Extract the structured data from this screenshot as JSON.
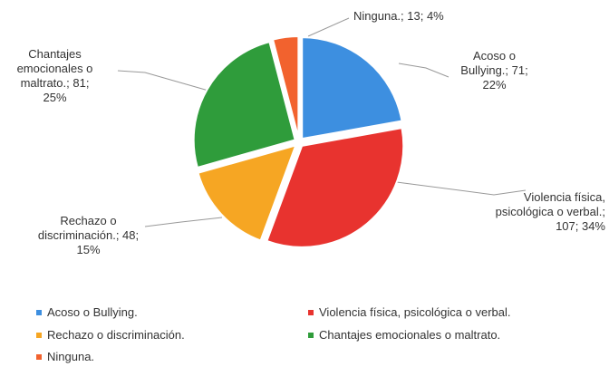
{
  "chart_data": {
    "type": "pie",
    "categories": [
      "Acoso o Bullying.",
      "Violencia física, psicológica o verbal.",
      "Rechazo o discriminación.",
      "Chantajes emocionales o maltrato.",
      "Ninguna."
    ],
    "values": [
      71,
      107,
      48,
      81,
      13
    ],
    "value_labels": [
      "Acoso o Bullying.; 71; 22%",
      "Violencia física, psicológica o verbal.; 107; 34%",
      "Rechazo o discriminación.; 48; 15%",
      "Chantajes emocionales o maltrato.; 81; 25%",
      "Ninguna.; 13; 4%"
    ],
    "colors": [
      "#3d8fe0",
      "#e8332f",
      "#f6a623",
      "#2f9c3b",
      "#f2622e"
    ],
    "legend": "bottom"
  }
}
